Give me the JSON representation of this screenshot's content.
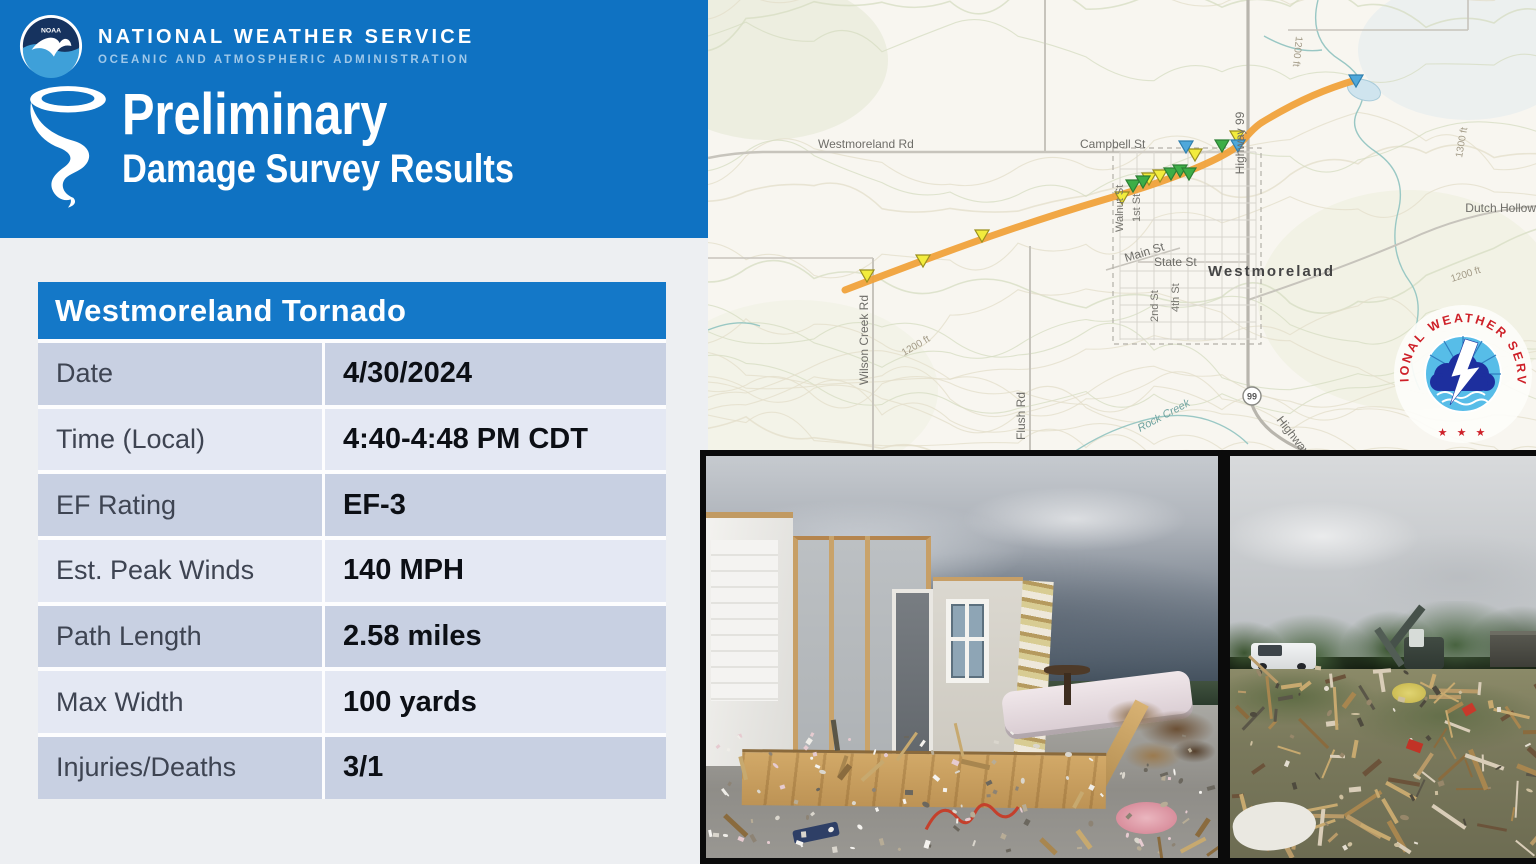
{
  "branding": {
    "noaa_abbr": "NOAA",
    "org_name": "NATIONAL WEATHER SERVICE",
    "org_subtitle": "OCEANIC AND ATMOSPHERIC ADMINISTRATION",
    "title_line1": "Preliminary",
    "title_line2": "Damage Survey Results"
  },
  "summary_table": {
    "title": "Westmoreland Tornado",
    "rows": [
      {
        "label": "Date",
        "value": "4/30/2024"
      },
      {
        "label": "Time (Local)",
        "value": "4:40-4:48 PM CDT"
      },
      {
        "label": "EF Rating",
        "value": "EF-3"
      },
      {
        "label": "Est. Peak Winds",
        "value": "140 MPH"
      },
      {
        "label": "Path Length",
        "value": "2.58 miles"
      },
      {
        "label": "Max Width",
        "value": "100 yards"
      },
      {
        "label": "Injuries/Deaths",
        "value": "3/1"
      }
    ]
  },
  "map": {
    "labels": {
      "westmoreland_rd": "Westmoreland Rd",
      "campbell_st": "Campbell St",
      "highway_99_vertical": "Highway 99",
      "highway_diagonal": "Highway",
      "shield_99": "99",
      "wilson_creek_rd": "Wilson Creek Rd",
      "flush_rd": "Flush Rd",
      "main_st": "Main St",
      "state_st": "State St",
      "walnut_st": "Walnut St",
      "first_st": "1st St",
      "second_st": "2nd St",
      "fourth_st": "4th St",
      "town": "Westmoreland",
      "dutch_hollow": "Dutch Hollow",
      "rock_creek": "Rock Creek",
      "contour_1200": "1200 ft",
      "contour_1300": "1300 ft"
    },
    "track_color": "#F0A23B",
    "marker_colors": {
      "green": "#3DAE47",
      "yellow": "#F2EC3D",
      "blue": "#4FA8DA"
    }
  },
  "nws_seal": {
    "ring_text": "NATIONAL WEATHER SERVICE",
    "stars": "★ ★ ★"
  }
}
